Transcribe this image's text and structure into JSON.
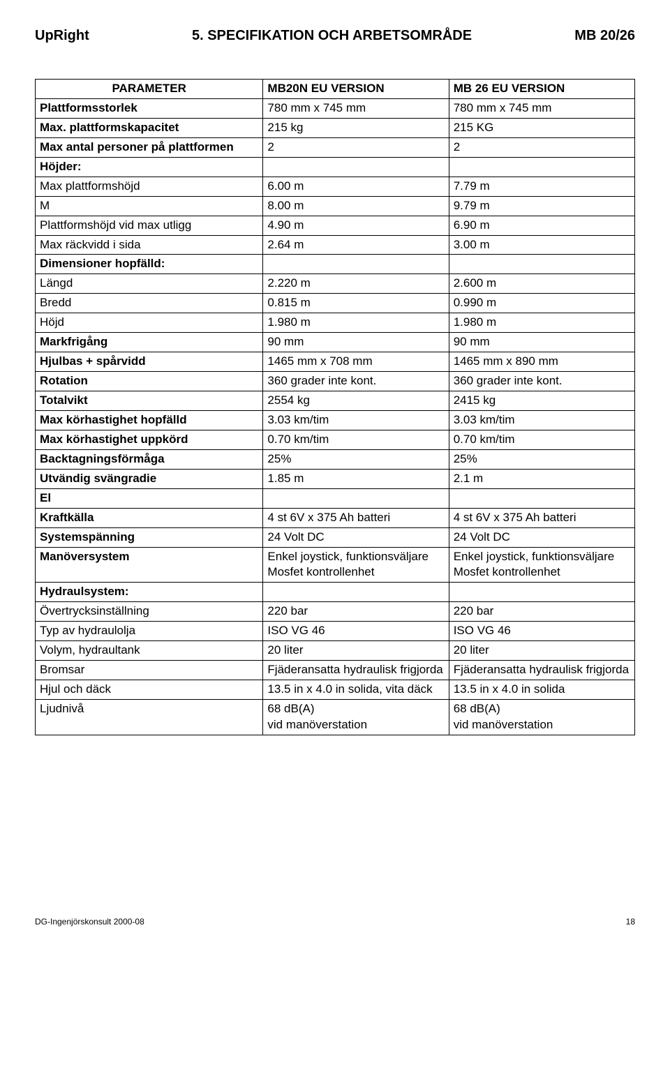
{
  "header": {
    "left": "UpRight",
    "center": "5. SPECIFIKATION OCH ARBETSOMRÅDE",
    "right": "MB 20/26"
  },
  "columns": {
    "param": "PARAMETER",
    "v1": "MB20N EU VERSION",
    "v2": "MB 26 EU VERSION"
  },
  "rows": [
    {
      "p": "Plattformsstorlek",
      "p_bold": true,
      "a": "780 mm x 745 mm",
      "b": "780 mm x 745 mm"
    },
    {
      "p": "Max. plattformskapacitet",
      "p_bold": true,
      "a": "215 kg",
      "b": "215 KG"
    },
    {
      "p": "Max antal personer på plattformen",
      "p_bold": true,
      "a": "2",
      "b": "2"
    },
    {
      "p": "Höjder:",
      "p_bold": true,
      "a": "",
      "b": ""
    },
    {
      "p": "Max plattformshöjd",
      "p_bold": false,
      "a": "6.00 m",
      "b": "7.79 m"
    },
    {
      "p": "M",
      "p_bold": false,
      "a": "8.00 m",
      "b": "9.79 m"
    },
    {
      "p": "Plattformshöjd vid max utligg",
      "p_bold": false,
      "a": "4.90 m",
      "b": "6.90 m"
    },
    {
      "p": "Max räckvidd i sida",
      "p_bold": false,
      "a": "2.64 m",
      "b": "3.00 m"
    },
    {
      "p": "Dimensioner hopfälld:",
      "p_bold": true,
      "a": "",
      "b": ""
    },
    {
      "p": "Längd",
      "p_bold": false,
      "a": "2.220 m",
      "b": "2.600 m"
    },
    {
      "p": "Bredd",
      "p_bold": false,
      "a": "0.815 m",
      "b": "0.990 m"
    },
    {
      "p": "Höjd",
      "p_bold": false,
      "a": "1.980 m",
      "b": "1.980 m"
    },
    {
      "p": "Markfrigång",
      "p_bold": true,
      "a": "90 mm",
      "b": "90 mm"
    },
    {
      "p": "Hjulbas + spårvidd",
      "p_bold": true,
      "a": "1465 mm x 708 mm",
      "b": "1465 mm x 890 mm"
    },
    {
      "p": "Rotation",
      "p_bold": true,
      "a": "360 grader inte kont.",
      "b": "360 grader inte kont."
    },
    {
      "p": "Totalvikt",
      "p_bold": true,
      "a": "2554 kg",
      "b": "2415 kg"
    },
    {
      "p": "Max körhastighet hopfälld",
      "p_bold": true,
      "a": "3.03 km/tim",
      "b": "3.03 km/tim"
    },
    {
      "p": "Max körhastighet uppkörd",
      "p_bold": true,
      "a": "0.70 km/tim",
      "b": "0.70 km/tim"
    },
    {
      "p": "Backtagningsförmåga",
      "p_bold": true,
      "a": "25%",
      "b": "25%"
    },
    {
      "p": "Utvändig svängradie",
      "p_bold": true,
      "a": "1.85 m",
      "b": "2.1 m"
    },
    {
      "p": "El",
      "p_bold": true,
      "a": "",
      "b": ""
    },
    {
      "p": "Kraftkälla",
      "p_bold": true,
      "a": "4 st 6V x 375 Ah batteri",
      "b": "4 st 6V x 375 Ah batteri"
    },
    {
      "p": "Systemspänning",
      "p_bold": true,
      "a": "24 Volt DC",
      "b": "24 Volt DC"
    },
    {
      "p": "Manöversystem",
      "p_bold": true,
      "a": "Enkel joystick, funktionsväljare Mosfet kontrollenhet",
      "b": "Enkel joystick, funktionsväljare Mosfet kontrollenhet"
    },
    {
      "p": "Hydraulsystem:",
      "p_bold": true,
      "a": "",
      "b": ""
    },
    {
      "p": "Övertrycksinställning",
      "p_bold": false,
      "a": "220 bar",
      "b": "220 bar"
    },
    {
      "p": "Typ av hydraulolja",
      "p_bold": false,
      "a": "ISO VG 46",
      "b": "ISO VG 46"
    },
    {
      "p": "Volym, hydraultank",
      "p_bold": false,
      "a": "20 liter",
      "b": "20 liter"
    },
    {
      "p": "Bromsar",
      "p_bold": false,
      "a": "Fjäderansatta hydraulisk frigjorda",
      "b": "Fjäderansatta hydraulisk frigjorda"
    },
    {
      "p": "Hjul och däck",
      "p_bold": false,
      "a": "13.5 in x 4.0 in solida, vita däck",
      "b": "13.5 in x 4.0 in solida"
    },
    {
      "p": "Ljudnivå",
      "p_bold": false,
      "a": "68 dB(A)\n vid manöverstation",
      "b": "68 dB(A)\n vid manöverstation"
    }
  ],
  "footer": {
    "left": "DG-Ingenjörskonsult 2000-08",
    "page": "18"
  }
}
